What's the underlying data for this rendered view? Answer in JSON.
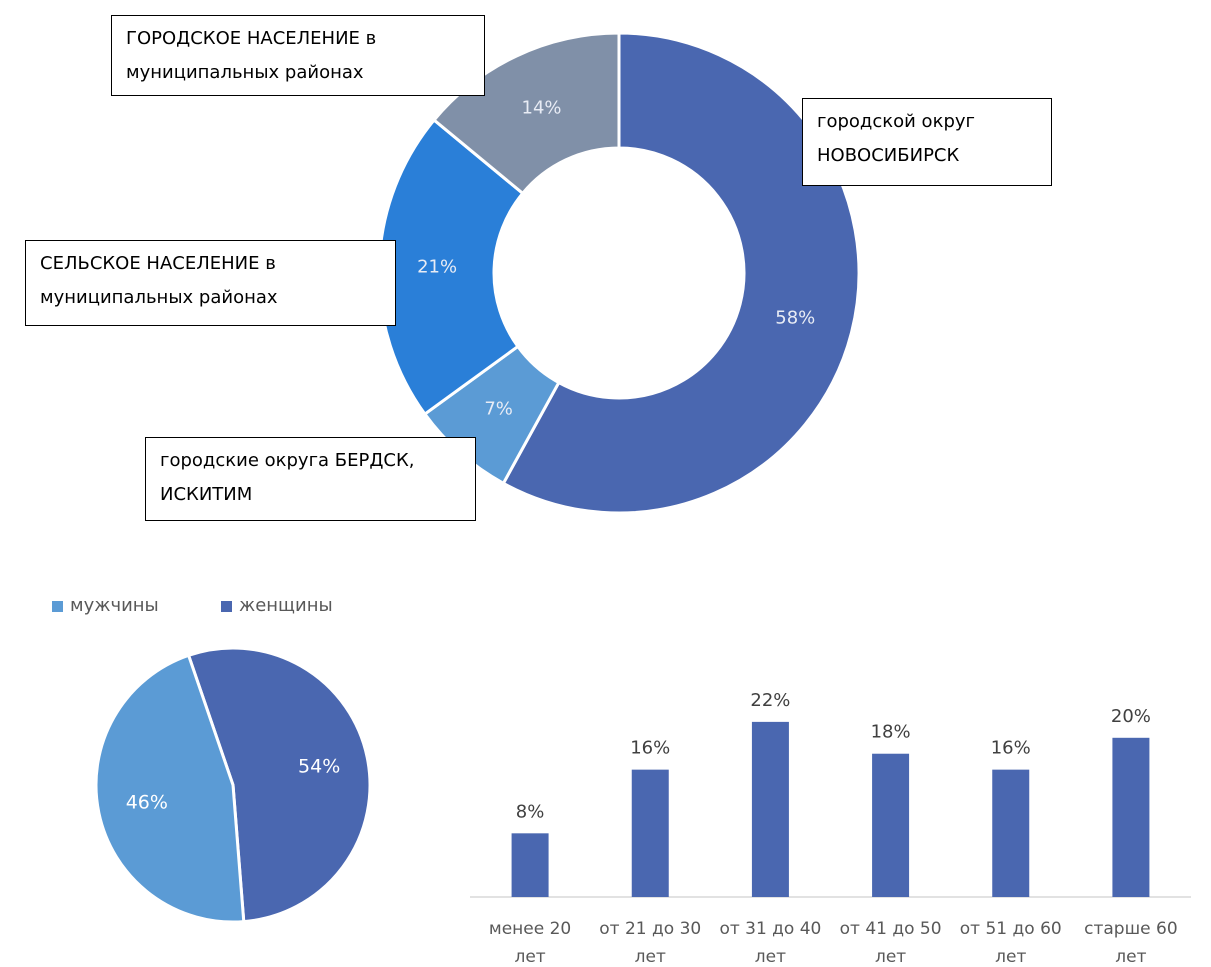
{
  "chart_data": [
    {
      "type": "donut",
      "categories": [
        "городской округ НОВОСИБИРСК",
        "городские округа БЕРДСК, ИСКИТИМ",
        "СЕЛЬСКОЕ НАСЕЛЕНИЕ в муниципальных районах",
        "ГОРОДСКОЕ НАСЕЛЕНИЕ в муниципальных районах"
      ],
      "values": [
        58,
        7,
        21,
        14
      ],
      "value_labels": [
        "58%",
        "7%",
        "21%",
        "14%"
      ],
      "colors": [
        "#4a67b0",
        "#5b9bd5",
        "#2a7fd8",
        "#8090a8"
      ]
    },
    {
      "type": "pie",
      "categories": [
        "женщины",
        "мужчины"
      ],
      "values": [
        54,
        46
      ],
      "value_labels": [
        "54%",
        "46%"
      ],
      "colors": [
        "#4a67b0",
        "#5b9bd5"
      ],
      "legend": "top"
    },
    {
      "type": "bar",
      "categories": [
        "менее 20 лет",
        "от 21 до 30 лет",
        "от 31 до 40 лет",
        "от 41 до 50 лет",
        "от 51 до 60 лет",
        "старше 60 лет"
      ],
      "values": [
        8,
        16,
        22,
        18,
        16,
        20
      ],
      "value_labels": [
        "8%",
        "16%",
        "22%",
        "18%",
        "16%",
        "20%"
      ],
      "color": "#4a67b0",
      "ylim": [
        0,
        25
      ]
    }
  ]
}
